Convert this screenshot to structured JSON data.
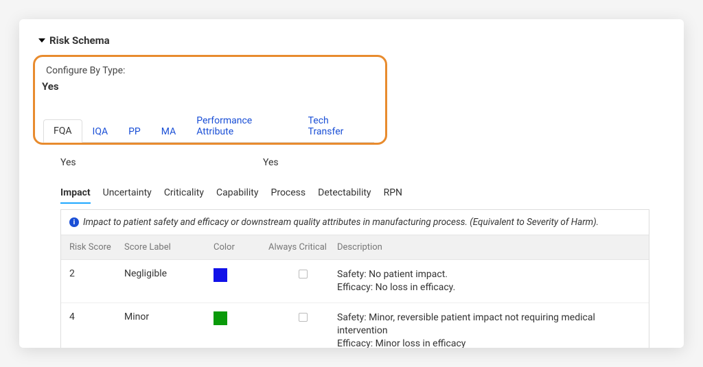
{
  "section_title": "Risk Schema",
  "configure_by_type_label": "Configure By Type:",
  "configure_by_type_value": "Yes",
  "type_tabs": {
    "items": [
      "FQA",
      "IQA",
      "PP",
      "MA",
      "Performance Attribute",
      "Tech Transfer"
    ],
    "active_index": 0
  },
  "yes_left": "Yes",
  "yes_right": "Yes",
  "sub_tabs": {
    "items": [
      "Impact",
      "Uncertainty",
      "Criticality",
      "Capability",
      "Process",
      "Detectability",
      "RPN"
    ],
    "active_index": 0
  },
  "info_text": "Impact to patient safety and efficacy or downstream quality attributes in manufacturing process. (Equivalent to Severity of Harm).",
  "columns": {
    "risk_score": "Risk Score",
    "score_label": "Score Label",
    "color": "Color",
    "always_critical": "Always Critical",
    "description": "Description"
  },
  "rows": [
    {
      "risk_score": "2",
      "score_label": "Negligible",
      "color": "#1212e8",
      "always_critical": false,
      "desc_line1": "Safety: No patient impact.",
      "desc_line2": "Efficacy: No loss in efficacy."
    },
    {
      "risk_score": "4",
      "score_label": "Minor",
      "color": "#0a9a0a",
      "always_critical": false,
      "desc_line1": "Safety: Minor, reversible patient impact not requiring medical intervention",
      "desc_line2": "Efficacy: Minor loss in efficacy"
    }
  ],
  "colors": {
    "highlight_border": "#e88b2e",
    "tab_link": "#1a4fd6",
    "subtab_underline": "#1da7ff"
  }
}
